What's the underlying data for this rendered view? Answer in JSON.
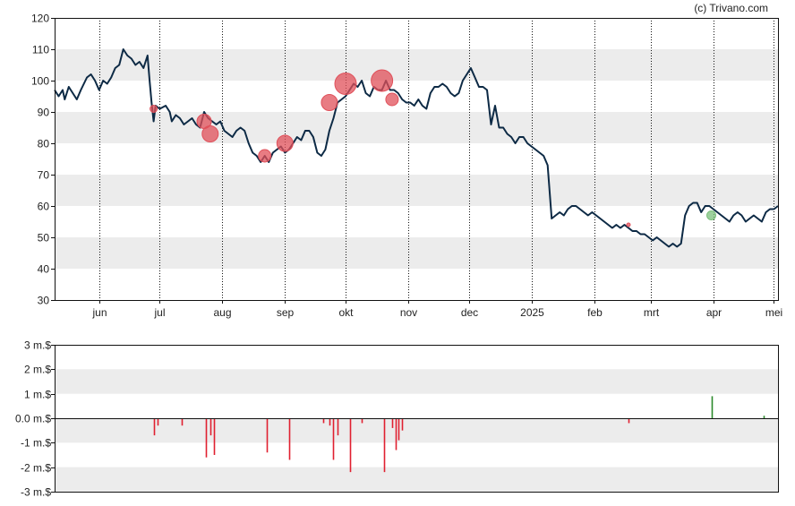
{
  "credit": "(c) Trivano.com",
  "chart_data": [
    {
      "type": "line",
      "title": "",
      "xlabel": "",
      "ylabel": "",
      "ylim": [
        30,
        120
      ],
      "yticks": [
        30,
        40,
        50,
        60,
        70,
        80,
        90,
        100,
        110,
        120
      ],
      "month_ticks": [
        {
          "label": "jun",
          "day": 22
        },
        {
          "label": "jul",
          "day": 52
        },
        {
          "label": "aug",
          "day": 83
        },
        {
          "label": "sep",
          "day": 114
        },
        {
          "label": "okt",
          "day": 144
        },
        {
          "label": "nov",
          "day": 175
        },
        {
          "label": "dec",
          "day": 205
        },
        {
          "label": "2025",
          "day": 236
        },
        {
          "label": "feb",
          "day": 267
        },
        {
          "label": "mrt",
          "day": 295
        },
        {
          "label": "apr",
          "day": 326
        },
        {
          "label": "mei",
          "day": 356
        }
      ],
      "x_domain": [
        0,
        358
      ],
      "grid": "alternating horizontal bands; dotted vertical month lines",
      "line_color": "#0d2a45",
      "series": [
        {
          "values": [
            [
              0,
              97
            ],
            [
              2,
              95
            ],
            [
              4,
              97
            ],
            [
              5,
              94
            ],
            [
              7,
              98
            ],
            [
              9,
              96
            ],
            [
              11,
              94
            ],
            [
              13,
              97
            ],
            [
              16,
              101
            ],
            [
              18,
              102
            ],
            [
              20,
              100
            ],
            [
              22,
              97
            ],
            [
              24,
              100
            ],
            [
              26,
              99
            ],
            [
              28,
              101
            ],
            [
              30,
              104
            ],
            [
              32,
              105
            ],
            [
              34,
              110
            ],
            [
              36,
              108
            ],
            [
              38,
              107
            ],
            [
              40,
              105
            ],
            [
              42,
              106
            ],
            [
              44,
              104
            ],
            [
              46,
              108
            ],
            [
              47,
              100
            ],
            [
              48,
              93
            ],
            [
              49,
              87
            ],
            [
              50,
              92
            ],
            [
              52,
              91
            ],
            [
              55,
              92
            ],
            [
              57,
              90
            ],
            [
              58,
              87
            ],
            [
              60,
              89
            ],
            [
              62,
              88
            ],
            [
              64,
              86
            ],
            [
              66,
              87
            ],
            [
              68,
              88
            ],
            [
              70,
              86
            ],
            [
              72,
              85
            ],
            [
              74,
              90
            ],
            [
              76,
              88
            ],
            [
              78,
              87
            ],
            [
              80,
              86
            ],
            [
              82,
              87
            ],
            [
              84,
              84
            ],
            [
              86,
              83
            ],
            [
              88,
              82
            ],
            [
              90,
              84
            ],
            [
              92,
              85
            ],
            [
              94,
              84
            ],
            [
              96,
              80
            ],
            [
              98,
              77
            ],
            [
              100,
              76
            ],
            [
              102,
              74
            ],
            [
              104,
              76
            ],
            [
              106,
              74
            ],
            [
              108,
              77
            ],
            [
              110,
              78
            ],
            [
              112,
              79
            ],
            [
              114,
              77
            ],
            [
              116,
              78
            ],
            [
              118,
              80
            ],
            [
              120,
              82
            ],
            [
              122,
              81
            ],
            [
              124,
              84
            ],
            [
              126,
              84
            ],
            [
              128,
              82
            ],
            [
              130,
              77
            ],
            [
              132,
              76
            ],
            [
              134,
              78
            ],
            [
              136,
              84
            ],
            [
              138,
              88
            ],
            [
              140,
              93
            ],
            [
              142,
              94
            ],
            [
              144,
              95
            ],
            [
              146,
              97
            ],
            [
              148,
              99
            ],
            [
              150,
              98
            ],
            [
              152,
              100
            ],
            [
              154,
              96
            ],
            [
              156,
              95
            ],
            [
              158,
              98
            ],
            [
              160,
              97
            ],
            [
              162,
              97
            ],
            [
              164,
              100
            ],
            [
              166,
              97
            ],
            [
              168,
              97
            ],
            [
              170,
              96
            ],
            [
              172,
              94
            ],
            [
              174,
              93
            ],
            [
              176,
              93
            ],
            [
              178,
              92
            ],
            [
              180,
              94
            ],
            [
              182,
              92
            ],
            [
              184,
              91
            ],
            [
              186,
              96
            ],
            [
              188,
              98
            ],
            [
              190,
              98
            ],
            [
              192,
              99
            ],
            [
              194,
              98
            ],
            [
              196,
              96
            ],
            [
              198,
              95
            ],
            [
              200,
              96
            ],
            [
              202,
              100
            ],
            [
              204,
              102
            ],
            [
              206,
              104
            ],
            [
              208,
              101
            ],
            [
              210,
              98
            ],
            [
              212,
              98
            ],
            [
              214,
              97
            ],
            [
              216,
              86
            ],
            [
              218,
              92
            ],
            [
              220,
              85
            ],
            [
              222,
              85
            ],
            [
              224,
              83
            ],
            [
              226,
              82
            ],
            [
              228,
              80
            ],
            [
              230,
              82
            ],
            [
              232,
              82
            ],
            [
              234,
              80
            ],
            [
              236,
              79
            ],
            [
              238,
              78
            ],
            [
              240,
              77
            ],
            [
              242,
              76
            ],
            [
              244,
              73
            ],
            [
              246,
              56
            ],
            [
              248,
              57
            ],
            [
              250,
              58
            ],
            [
              252,
              57
            ],
            [
              254,
              59
            ],
            [
              256,
              60
            ],
            [
              258,
              60
            ],
            [
              260,
              59
            ],
            [
              262,
              58
            ],
            [
              264,
              57
            ],
            [
              266,
              58
            ],
            [
              268,
              57
            ],
            [
              270,
              56
            ],
            [
              272,
              55
            ],
            [
              274,
              54
            ],
            [
              276,
              53
            ],
            [
              278,
              54
            ],
            [
              280,
              53
            ],
            [
              282,
              54
            ],
            [
              284,
              53
            ],
            [
              286,
              52
            ],
            [
              288,
              52
            ],
            [
              290,
              51
            ],
            [
              292,
              51
            ],
            [
              294,
              50
            ],
            [
              296,
              49
            ],
            [
              298,
              50
            ],
            [
              300,
              49
            ],
            [
              302,
              48
            ],
            [
              304,
              47
            ],
            [
              306,
              48
            ],
            [
              308,
              47
            ],
            [
              310,
              48
            ],
            [
              312,
              57
            ],
            [
              314,
              60
            ],
            [
              316,
              61
            ],
            [
              318,
              61
            ],
            [
              320,
              58
            ],
            [
              322,
              60
            ],
            [
              324,
              60
            ],
            [
              326,
              59
            ],
            [
              328,
              58
            ],
            [
              330,
              57
            ],
            [
              332,
              56
            ],
            [
              334,
              55
            ],
            [
              336,
              57
            ],
            [
              338,
              58
            ],
            [
              340,
              57
            ],
            [
              342,
              55
            ],
            [
              344,
              56
            ],
            [
              346,
              57
            ],
            [
              348,
              56
            ],
            [
              350,
              55
            ],
            [
              352,
              58
            ],
            [
              354,
              59
            ],
            [
              356,
              59
            ],
            [
              358,
              60
            ]
          ]
        }
      ],
      "markers": [
        {
          "day": 49,
          "value": 91,
          "size": 4,
          "color": "#e0505a"
        },
        {
          "day": 74,
          "value": 87,
          "size": 8,
          "color": "#e0505a"
        },
        {
          "day": 77,
          "value": 83,
          "size": 9,
          "color": "#e0505a"
        },
        {
          "day": 104,
          "value": 76,
          "size": 7,
          "color": "#e0505a"
        },
        {
          "day": 114,
          "value": 80,
          "size": 9,
          "color": "#e0505a"
        },
        {
          "day": 136,
          "value": 93,
          "size": 9,
          "color": "#e0505a"
        },
        {
          "day": 144,
          "value": 99,
          "size": 12,
          "color": "#e0505a"
        },
        {
          "day": 162,
          "value": 100,
          "size": 12,
          "color": "#e0505a"
        },
        {
          "day": 167,
          "value": 94,
          "size": 7,
          "color": "#e0505a"
        },
        {
          "day": 284,
          "value": 54,
          "size": 2,
          "color": "#e0505a"
        },
        {
          "day": 325,
          "value": 57,
          "size": 5,
          "color": "#7cc07c"
        }
      ]
    },
    {
      "type": "bar",
      "title": "",
      "xlabel": "",
      "ylabel": "",
      "ylim": [
        -3,
        3
      ],
      "yticks": [
        "-3 m.$",
        "-2 m.$",
        "-1 m.$",
        "0.0 m.$",
        "1 m.$",
        "2 m.$",
        "3 m.$"
      ],
      "ytick_values": [
        -3,
        -2,
        -1,
        0,
        1,
        2,
        3
      ],
      "bars": [
        {
          "day": 49,
          "value": -0.7
        },
        {
          "day": 51,
          "value": -0.3
        },
        {
          "day": 63,
          "value": -0.3
        },
        {
          "day": 75,
          "value": -1.6
        },
        {
          "day": 77,
          "value": -0.7
        },
        {
          "day": 79,
          "value": -1.5
        },
        {
          "day": 105,
          "value": -1.4
        },
        {
          "day": 116,
          "value": -1.7
        },
        {
          "day": 133,
          "value": -0.2
        },
        {
          "day": 136,
          "value": -0.3
        },
        {
          "day": 138,
          "value": -1.7
        },
        {
          "day": 140,
          "value": -0.7
        },
        {
          "day": 146,
          "value": -2.2
        },
        {
          "day": 152,
          "value": -0.2
        },
        {
          "day": 163,
          "value": -2.2
        },
        {
          "day": 167,
          "value": -0.4
        },
        {
          "day": 169,
          "value": -1.3
        },
        {
          "day": 170,
          "value": -0.9
        },
        {
          "day": 172,
          "value": -0.5
        },
        {
          "day": 284,
          "value": -0.2
        },
        {
          "day": 325,
          "value": 0.9
        },
        {
          "day": 351,
          "value": 0.1
        }
      ],
      "negative_color": "#e02030",
      "positive_color": "#2a8a2a"
    }
  ]
}
